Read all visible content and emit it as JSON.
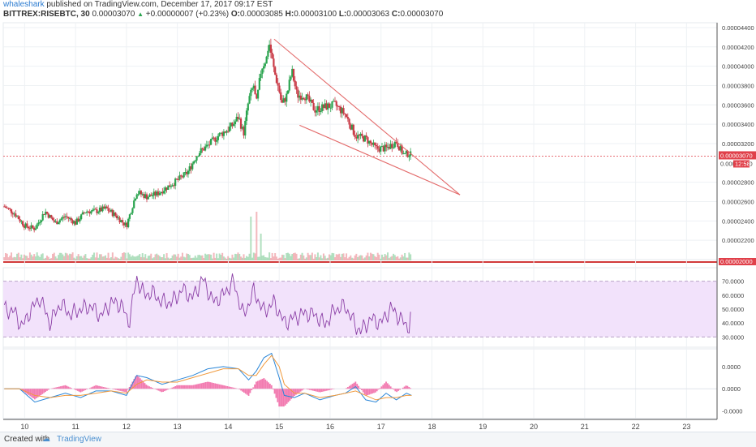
{
  "header": {
    "user": "whaleshark",
    "published": " published on TradingView.com, December 17, 2017 09:17 EST",
    "symbol": "BITTREX:RISEBTC, 30",
    "close": "0.00003070",
    "change": "+0.00000007 (+0.23%)",
    "open_label": "O:",
    "open": "0.00003085",
    "high_label": "H:",
    "high": "0.00003100",
    "low_label": "L:",
    "low": "0.00003063",
    "close_label": "C:",
    "close2": "0.00003070"
  },
  "footer": {
    "created_with": "Created with",
    "brand": "TradingView"
  },
  "colors": {
    "up": "#2aa44f",
    "down": "#c93b47",
    "trend": "#e36a6a",
    "rsi": "#8b3fa6",
    "rsi_band": "#f2e2fb",
    "macd": "#2a86d8",
    "signal": "#f09a3e",
    "hist": "#f27ab0",
    "price_tag": "#e0404a"
  },
  "chart_data": [
    {
      "type": "candlestick",
      "name": "price",
      "ylim": [
        2e-05,
        4.45e-05
      ],
      "y_ticks": [
        "0.00004400",
        "0.00004200",
        "0.00004000",
        "0.00003800",
        "0.00003600",
        "0.00003400",
        "0.00003200",
        "0.00002800",
        "0.00002600",
        "0.00002400",
        "0.00002200"
      ],
      "y_tick_values": [
        4.4e-05,
        4.2e-05,
        4e-05,
        3.8e-05,
        3.6e-05,
        3.4e-05,
        3.2e-05,
        2.8e-05,
        2.6e-05,
        2.4e-05,
        2.2e-05
      ],
      "last_price_label": "0.00003070",
      "last_price": 3.07e-05,
      "countdown_label": "12:58",
      "hidden_label": "0.00003000",
      "bottom_label": "0.00002000",
      "x_day_ticks": [
        "10",
        "11",
        "12",
        "13",
        "14",
        "15",
        "16",
        "17",
        "18",
        "19",
        "20",
        "21",
        "22",
        "23"
      ],
      "x_day_values": [
        10,
        11,
        12,
        13,
        14,
        15,
        16,
        17,
        18,
        19,
        20,
        21,
        22,
        23
      ],
      "x_range": [
        9.58,
        23.6
      ],
      "close_series": {
        "x": [
          9.6,
          9.8,
          10.0,
          10.2,
          10.4,
          10.6,
          10.8,
          11.0,
          11.2,
          11.4,
          11.6,
          11.8,
          12.0,
          12.2,
          12.4,
          12.6,
          12.8,
          13.0,
          13.2,
          13.4,
          13.6,
          13.8,
          14.0,
          14.1,
          14.2,
          14.3,
          14.4,
          14.5,
          14.55,
          14.65,
          14.75,
          14.8,
          14.9,
          15.0,
          15.05,
          15.15,
          15.25,
          15.35,
          15.5,
          15.7,
          15.9,
          16.1,
          16.3,
          16.5,
          16.7,
          16.9,
          17.1,
          17.3,
          17.45,
          17.55,
          17.6
        ],
        "y": [
          2.55e-05,
          2.48e-05,
          2.35e-05,
          2.32e-05,
          2.5e-05,
          2.38e-05,
          2.45e-05,
          2.38e-05,
          2.5e-05,
          2.5e-05,
          2.53e-05,
          2.45e-05,
          2.35e-05,
          2.7e-05,
          2.65e-05,
          2.68e-05,
          2.75e-05,
          2.82e-05,
          2.9e-05,
          3.1e-05,
          3.18e-05,
          3.28e-05,
          3.35e-05,
          3.4e-05,
          3.48e-05,
          3.3e-05,
          3.65e-05,
          3.8e-05,
          3.6e-05,
          3.98e-05,
          4.08e-05,
          4.25e-05,
          3.95e-05,
          3.75e-05,
          3.6e-05,
          3.7e-05,
          3.95e-05,
          3.7e-05,
          3.7e-05,
          3.55e-05,
          3.58e-05,
          3.6e-05,
          3.5e-05,
          3.28e-05,
          3.25e-05,
          3.15e-05,
          3.15e-05,
          3.22e-05,
          3.08e-05,
          3.1e-05,
          3.07e-05
        ]
      },
      "volume": {
        "max_bars_x": [
          14.45,
          14.55,
          14.65
        ],
        "max_bars_rel": [
          0.9,
          1.0,
          0.55
        ]
      },
      "triangle": {
        "upper": [
          [
            14.9,
            4.28e-05
          ],
          [
            18.55,
            2.67e-05
          ]
        ],
        "lower": [
          [
            15.4,
            3.39e-05
          ],
          [
            18.55,
            2.67e-05
          ]
        ]
      }
    },
    {
      "type": "line",
      "name": "RSI",
      "ylim": [
        25,
        75
      ],
      "y_ticks": [
        "70.0000",
        "60.0000",
        "50.0000",
        "40.0000",
        "30.0000"
      ],
      "y_tick_values": [
        70,
        60,
        50,
        40,
        30
      ],
      "band": [
        30,
        70
      ],
      "x": [
        9.6,
        9.8,
        9.95,
        10.1,
        10.3,
        10.5,
        10.7,
        10.9,
        11.1,
        11.3,
        11.5,
        11.7,
        11.9,
        12.05,
        12.2,
        12.35,
        12.5,
        12.7,
        12.9,
        13.1,
        13.3,
        13.5,
        13.7,
        13.9,
        14.1,
        14.3,
        14.5,
        14.7,
        14.9,
        15.1,
        15.3,
        15.5,
        15.7,
        15.9,
        16.1,
        16.3,
        16.5,
        16.6,
        16.8,
        17.0,
        17.2,
        17.4,
        17.55,
        17.6
      ],
      "y": [
        50,
        48,
        37,
        48,
        58,
        40,
        54,
        46,
        50,
        52,
        45,
        55,
        53,
        40,
        72,
        60,
        62,
        55,
        55,
        64,
        58,
        72,
        55,
        60,
        70,
        45,
        63,
        48,
        55,
        40,
        44,
        47,
        46,
        39,
        50,
        52,
        38,
        34,
        43,
        40,
        51,
        42,
        37,
        49
      ]
    },
    {
      "type": "line",
      "name": "MACD",
      "ylim": [
        -1.2e-06,
        1.8e-06
      ],
      "y_ticks": [
        "0.0000",
        "0.0000",
        "-0.0000"
      ],
      "y_tick_values": [
        1e-06,
        0,
        -1e-06
      ],
      "series": [
        {
          "name": "MACD",
          "x": [
            9.6,
            9.9,
            10.2,
            10.5,
            10.8,
            11.1,
            11.4,
            11.7,
            12.0,
            12.2,
            12.4,
            12.7,
            13.0,
            13.3,
            13.6,
            13.9,
            14.2,
            14.4,
            14.55,
            14.7,
            14.85,
            15.0,
            15.1,
            15.3,
            15.5,
            15.8,
            16.1,
            16.3,
            16.5,
            16.7,
            16.9,
            17.1,
            17.3,
            17.5,
            17.6
          ],
          "y": [
            0,
            0,
            -6e-07,
            -4e-07,
            -2e-07,
            -4e-07,
            -1e-07,
            -1e-07,
            -3e-07,
            6e-07,
            5e-07,
            2e-07,
            4e-07,
            6e-07,
            9e-07,
            1e-06,
            9e-07,
            4e-07,
            8e-07,
            1.4e-06,
            1.6e-06,
            5e-07,
            -3e-07,
            -4e-07,
            -2e-07,
            -5e-07,
            -3e-07,
            -2e-07,
            1e-07,
            -5e-07,
            -6e-07,
            -2e-07,
            -5e-07,
            -2e-07,
            -3e-07
          ]
        },
        {
          "name": "Signal",
          "x": [
            9.6,
            9.9,
            10.2,
            10.5,
            10.8,
            11.1,
            11.4,
            11.7,
            12.0,
            12.2,
            12.4,
            12.7,
            13.0,
            13.3,
            13.6,
            13.9,
            14.2,
            14.4,
            14.55,
            14.7,
            14.85,
            15.0,
            15.1,
            15.3,
            15.5,
            15.8,
            16.1,
            16.3,
            16.5,
            16.7,
            16.9,
            17.1,
            17.3,
            17.5,
            17.6
          ],
          "y": [
            0,
            0,
            -3e-07,
            -4e-07,
            -3e-07,
            -3e-07,
            -2e-07,
            -1e-07,
            -2e-07,
            2e-07,
            4e-07,
            3e-07,
            3e-07,
            5e-07,
            7e-07,
            9e-07,
            9e-07,
            6e-07,
            6e-07,
            1.1e-06,
            1.5e-06,
            1e-06,
            2e-07,
            -2e-07,
            -2e-07,
            -4e-07,
            -3e-07,
            -2e-07,
            -1e-07,
            -3e-07,
            -5e-07,
            -4e-07,
            -4e-07,
            -3e-07,
            -3e-07
          ]
        }
      ]
    }
  ]
}
